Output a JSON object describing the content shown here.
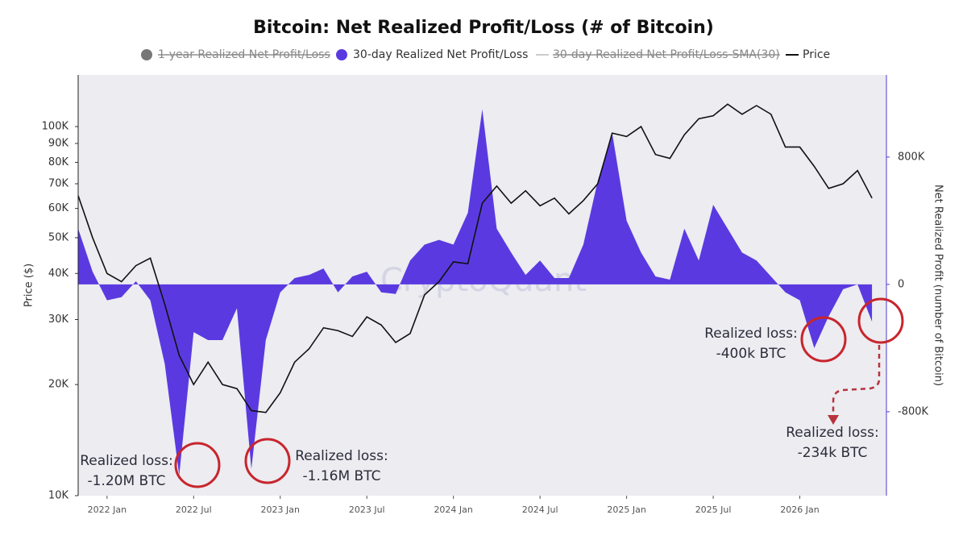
{
  "chart_data": {
    "type": "line",
    "title": "Bitcoin: Net Realized Profit/Loss (# of Bitcoin)",
    "ylabel": "Price ($)",
    "y2label": "Net Realized Profit (number of Bitcoin)",
    "watermark": "CryptoQuant",
    "x": [
      "2021-11",
      "2021-12",
      "2022-01",
      "2022-02",
      "2022-03",
      "2022-04",
      "2022-05",
      "2022-06",
      "2022-07",
      "2022-08",
      "2022-09",
      "2022-10",
      "2022-11",
      "2022-12",
      "2023-01",
      "2023-02",
      "2023-03",
      "2023-04",
      "2023-05",
      "2023-06",
      "2023-07",
      "2023-08",
      "2023-09",
      "2023-10",
      "2023-11",
      "2023-12",
      "2024-01",
      "2024-02",
      "2024-03",
      "2024-04",
      "2024-05",
      "2024-06",
      "2024-07",
      "2024-08",
      "2024-09",
      "2024-10",
      "2024-11",
      "2024-12",
      "2025-01",
      "2025-02",
      "2025-03",
      "2025-04",
      "2025-05",
      "2025-06",
      "2025-07",
      "2025-08",
      "2025-09",
      "2025-10",
      "2025-11",
      "2025-12",
      "2026-01",
      "2026-02",
      "2026-03",
      "2026-04",
      "2026-05",
      "2026-06"
    ],
    "xlim": [
      "2021-11",
      "2026-07"
    ],
    "xticks": [
      {
        "value": "2022-01",
        "label": "2022 Jan"
      },
      {
        "value": "2022-07",
        "label": "2022 Jul"
      },
      {
        "value": "2023-01",
        "label": "2023 Jan"
      },
      {
        "value": "2023-07",
        "label": "2023 Jul"
      },
      {
        "value": "2024-01",
        "label": "2024 Jan"
      },
      {
        "value": "2024-07",
        "label": "2024 Jul"
      },
      {
        "value": "2025-01",
        "label": "2025 Jan"
      },
      {
        "value": "2025-07",
        "label": "2025 Jul"
      },
      {
        "value": "2026-01",
        "label": "2026 Jan"
      }
    ],
    "ylog": true,
    "ylim": [
      10000,
      138000
    ],
    "yticks": [
      {
        "value": 10000,
        "label": "10K"
      },
      {
        "value": 20000,
        "label": "20K"
      },
      {
        "value": 30000,
        "label": "30K"
      },
      {
        "value": 40000,
        "label": "40K"
      },
      {
        "value": 50000,
        "label": "50K"
      },
      {
        "value": 60000,
        "label": "60K"
      },
      {
        "value": 70000,
        "label": "70K"
      },
      {
        "value": 80000,
        "label": "80K"
      },
      {
        "value": 90000,
        "label": "90K"
      },
      {
        "value": 100000,
        "label": "100K"
      }
    ],
    "y2lim": [
      -1327000,
      1316000
    ],
    "y2ticks": [
      {
        "value": -800000,
        "label": "-800K"
      },
      0,
      {
        "value": 800000,
        "label": "800K"
      }
    ],
    "series": [
      {
        "name": "1-year Realized Net Profit/Loss",
        "color": "#777777",
        "hidden": true
      },
      {
        "name": "30-day Realized Net Profit/Loss",
        "color": "#5a3ae0",
        "axis": "y2",
        "kind": "area",
        "values": [
          350000,
          80000,
          -100000,
          -80000,
          20000,
          -100000,
          -500000,
          -1200000,
          -300000,
          -350000,
          -350000,
          -150000,
          -1160000,
          -350000,
          -50000,
          40000,
          60000,
          100000,
          -50000,
          50000,
          80000,
          -50000,
          -60000,
          150000,
          250000,
          280000,
          250000,
          450000,
          1100000,
          350000,
          200000,
          60000,
          150000,
          40000,
          40000,
          250000,
          650000,
          950000,
          400000,
          200000,
          50000,
          30000,
          350000,
          150000,
          500000,
          350000,
          200000,
          150000,
          50000,
          -50000,
          -100000,
          -400000,
          -200000,
          -30000,
          0,
          -234000
        ]
      },
      {
        "name": "30-day Realized Net Profit/Loss-SMA(30)",
        "color": "#bbbbbb",
        "hidden": true
      },
      {
        "name": "Price",
        "color": "#111111",
        "kind": "line",
        "values": [
          65000,
          50000,
          40000,
          38000,
          42000,
          44000,
          33000,
          24000,
          20000,
          23000,
          20000,
          19500,
          17000,
          16800,
          19000,
          23000,
          25000,
          28500,
          28000,
          27000,
          30500,
          29000,
          26000,
          27500,
          35000,
          38000,
          43000,
          42500,
          62000,
          69000,
          62000,
          67000,
          61000,
          64000,
          58000,
          63000,
          70000,
          96000,
          94000,
          100000,
          84000,
          82000,
          95000,
          105000,
          107000,
          115000,
          108000,
          114000,
          108000,
          88000,
          88000,
          78000,
          68000,
          70000,
          76000,
          64000
        ]
      }
    ],
    "annotations": [
      {
        "lines": [
          "Realized loss:",
          "-1.20M BTC"
        ]
      },
      {
        "lines": [
          "Realized loss:",
          "-1.16M BTC"
        ]
      },
      {
        "lines": [
          "Realized loss:",
          "-400k BTC"
        ]
      },
      {
        "lines": [
          "Realized loss:",
          "-234k BTC"
        ]
      }
    ]
  }
}
